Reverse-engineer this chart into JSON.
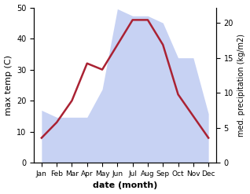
{
  "months": [
    "Jan",
    "Feb",
    "Mar",
    "Apr",
    "May",
    "Jun",
    "Jul",
    "Aug",
    "Sep",
    "Oct",
    "Nov",
    "Dec"
  ],
  "temp": [
    8,
    13,
    20,
    32,
    30,
    38,
    46,
    46,
    38,
    22,
    15,
    8
  ],
  "precip": [
    7.5,
    6.5,
    6.5,
    6.5,
    10.5,
    22,
    21,
    21,
    20,
    15,
    15,
    7
  ],
  "temp_ylim": [
    0,
    50
  ],
  "precip_ylim": [
    0,
    22.2
  ],
  "xlabel": "date (month)",
  "ylabel_left": "max temp (C)",
  "ylabel_right": "med. precipitation (kg/m2)",
  "fill_color": "#aabbee",
  "fill_alpha": 0.65,
  "line_color": "#aa2233",
  "line_width": 1.8,
  "bg_color": "#ffffff",
  "right_yticks": [
    0,
    5,
    10,
    15,
    20
  ],
  "left_yticks": [
    0,
    10,
    20,
    30,
    40,
    50
  ]
}
